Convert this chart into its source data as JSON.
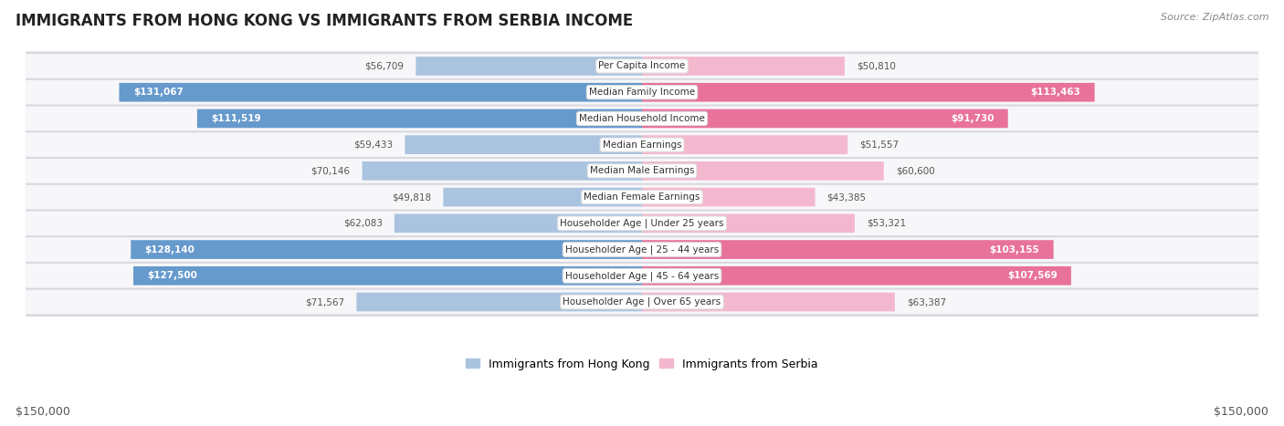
{
  "title": "IMMIGRANTS FROM HONG KONG VS IMMIGRANTS FROM SERBIA INCOME",
  "source": "Source: ZipAtlas.com",
  "categories": [
    "Per Capita Income",
    "Median Family Income",
    "Median Household Income",
    "Median Earnings",
    "Median Male Earnings",
    "Median Female Earnings",
    "Householder Age | Under 25 years",
    "Householder Age | 25 - 44 years",
    "Householder Age | 45 - 64 years",
    "Householder Age | Over 65 years"
  ],
  "hong_kong_values": [
    56709,
    131067,
    111519,
    59433,
    70146,
    49818,
    62083,
    128140,
    127500,
    71567
  ],
  "serbia_values": [
    50810,
    113463,
    91730,
    51557,
    60600,
    43385,
    53321,
    103155,
    107569,
    63387
  ],
  "hong_kong_labels": [
    "$56,709",
    "$131,067",
    "$111,519",
    "$59,433",
    "$70,146",
    "$49,818",
    "$62,083",
    "$128,140",
    "$127,500",
    "$71,567"
  ],
  "serbia_labels": [
    "$50,810",
    "$113,463",
    "$91,730",
    "$51,557",
    "$60,600",
    "$43,385",
    "$53,321",
    "$103,155",
    "$107,569",
    "$63,387"
  ],
  "hk_color_light": "#aac4e0",
  "hk_color_dark": "#6699cc",
  "serbia_color_light": "#f4b8ce",
  "serbia_color_dark": "#e8729a",
  "axis_max": 150000,
  "legend_hk": "Immigrants from Hong Kong",
  "legend_serbia": "Immigrants from Serbia",
  "bottom_axis_label_left": "$150,000",
  "bottom_axis_label_right": "$150,000",
  "inside_label_threshold": 80000,
  "row_bg": "#e8e8ec",
  "row_inner_bg": "#f5f5f8",
  "fig_bg": "#ffffff"
}
